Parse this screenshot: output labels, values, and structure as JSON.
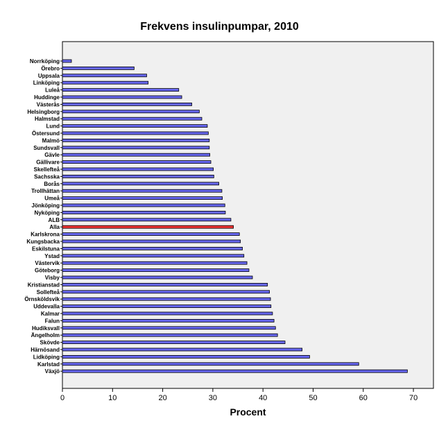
{
  "chart_data": {
    "type": "bar",
    "orientation": "horizontal",
    "title": "Frekvens insulinpumpar, 2010",
    "xlabel": "Procent",
    "ylabel": "",
    "xlim": [
      0,
      74
    ],
    "xticks": [
      0,
      10,
      20,
      30,
      40,
      50,
      60,
      70
    ],
    "grid": false,
    "bar_color": "#6666ee",
    "highlight_color": "#ee3333",
    "highlight_category": "Alla",
    "plot_background": "#f0f0f0",
    "categories": [
      "Norrköping",
      "Örebro",
      "Uppsala",
      "Linköping",
      "Luleå",
      "Huddinge",
      "Västerås",
      "Helsingborg",
      "Halmstad",
      "Lund",
      "Östersund",
      "Malmö",
      "Sundsvall",
      "Gävle",
      "Gällivare",
      "Skellefteå",
      "Sachsska",
      "Borås",
      "Trollhättan",
      "Umeå",
      "Jönköping",
      "Nyköping",
      "ALB",
      "Alla",
      "Karlskrona",
      "Kungsbacka",
      "Eskilstuna",
      "Ystad",
      "Västervik",
      "Göteborg",
      "Visby",
      "Kristianstad",
      "Sollefteå",
      "Örnsköldsvik",
      "Uddevalla",
      "Kalmar",
      "Falun",
      "Hudiksvall",
      "Ängelholm",
      "Skövde",
      "Härnösand",
      "Lidköping",
      "Karlstad",
      "Växjö"
    ],
    "values": [
      1.8,
      14.3,
      16.8,
      17.1,
      23.2,
      23.8,
      25.8,
      27.3,
      27.8,
      28.9,
      29.1,
      29.3,
      29.3,
      29.4,
      29.6,
      30.1,
      30.2,
      31.2,
      31.8,
      31.9,
      32.4,
      32.5,
      33.6,
      34.1,
      35.3,
      35.5,
      35.9,
      36.2,
      36.8,
      37.2,
      37.9,
      40.9,
      41.3,
      41.5,
      41.6,
      41.9,
      42.2,
      42.5,
      42.9,
      44.4,
      47.8,
      49.3,
      59.1,
      68.8
    ]
  }
}
